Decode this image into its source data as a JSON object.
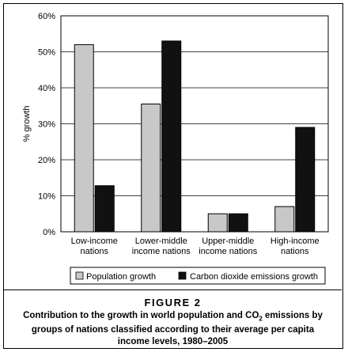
{
  "chart_data": {
    "type": "bar",
    "ylabel": "% growth",
    "ylim": [
      0,
      60
    ],
    "yticks": [
      0,
      10,
      20,
      30,
      40,
      50,
      60
    ],
    "ytick_labels": [
      "0%",
      "10%",
      "20%",
      "30%",
      "40%",
      "50%",
      "60%"
    ],
    "grid": true,
    "categories": [
      [
        "Low-income",
        "nations"
      ],
      [
        "Lower-middle",
        "income nations"
      ],
      [
        "Upper-middle",
        "income nations"
      ],
      [
        "High-income",
        "nations"
      ]
    ],
    "series": [
      {
        "name": "Population growth",
        "color": "#c8c8c8",
        "values": [
          52,
          35.5,
          5,
          7
        ]
      },
      {
        "name": "Carbon dioxide emissions growth",
        "color": "#111111",
        "values": [
          12.8,
          53,
          5,
          29
        ]
      }
    ],
    "legend_position": "bottom"
  },
  "figure": {
    "label": "FIGURE 2",
    "caption_pre": "Contribution to the growth in world population and CO",
    "caption_sub": "2",
    "caption_post": " emissions by groups of nations classified according to their average per capita income levels, 1980–2005"
  }
}
